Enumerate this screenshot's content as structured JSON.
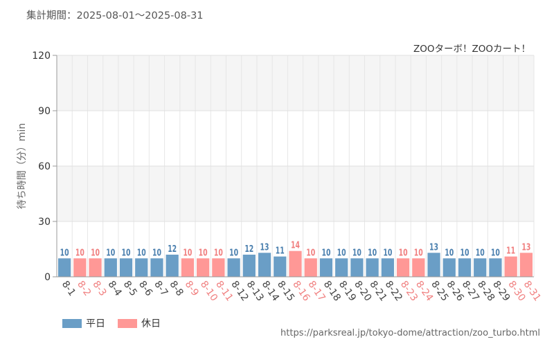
{
  "header": {
    "period_label": "集計期間：2025-08-01～2025-08-31"
  },
  "chart_data": {
    "type": "bar",
    "title": "ZOOターボ！ZOOカート！",
    "ylabel": "待ち時間（分）min",
    "xlabel": "",
    "ylim": [
      0,
      120
    ],
    "yticks": [
      0,
      30,
      60,
      90,
      120
    ],
    "grid": true,
    "legend_position": "bottom-left",
    "colors": {
      "weekday": "#6a9ec6",
      "holiday": "#ff9896",
      "weekday_label": "#4a7fae",
      "holiday_label": "#f07f7f"
    },
    "categories": [
      "8-1",
      "8-2",
      "8-3",
      "8-4",
      "8-5",
      "8-6",
      "8-7",
      "8-8",
      "8-9",
      "8-10",
      "8-11",
      "8-12",
      "8-13",
      "8-14",
      "8-15",
      "8-16",
      "8-17",
      "8-18",
      "8-19",
      "8-20",
      "8-21",
      "8-22",
      "8-23",
      "8-24",
      "8-25",
      "8-26",
      "8-27",
      "8-28",
      "8-29",
      "8-30",
      "8-31"
    ],
    "values": [
      10,
      10,
      10,
      10,
      10,
      10,
      10,
      12,
      10,
      10,
      10,
      10,
      12,
      13,
      11,
      14,
      10,
      10,
      10,
      10,
      10,
      10,
      10,
      10,
      13,
      10,
      10,
      10,
      10,
      11,
      13
    ],
    "day_type": [
      "weekday",
      "holiday",
      "holiday",
      "weekday",
      "weekday",
      "weekday",
      "weekday",
      "weekday",
      "holiday",
      "holiday",
      "holiday",
      "weekday",
      "weekday",
      "weekday",
      "weekday",
      "holiday",
      "holiday",
      "weekday",
      "weekday",
      "weekday",
      "weekday",
      "weekday",
      "holiday",
      "holiday",
      "weekday",
      "weekday",
      "weekday",
      "weekday",
      "weekday",
      "holiday",
      "holiday"
    ]
  },
  "legend": {
    "weekday_label": "平日",
    "holiday_label": "休日"
  },
  "footer": {
    "url": "https://parksreal.jp/tokyo-dome/attraction/zoo_turbo.html"
  }
}
